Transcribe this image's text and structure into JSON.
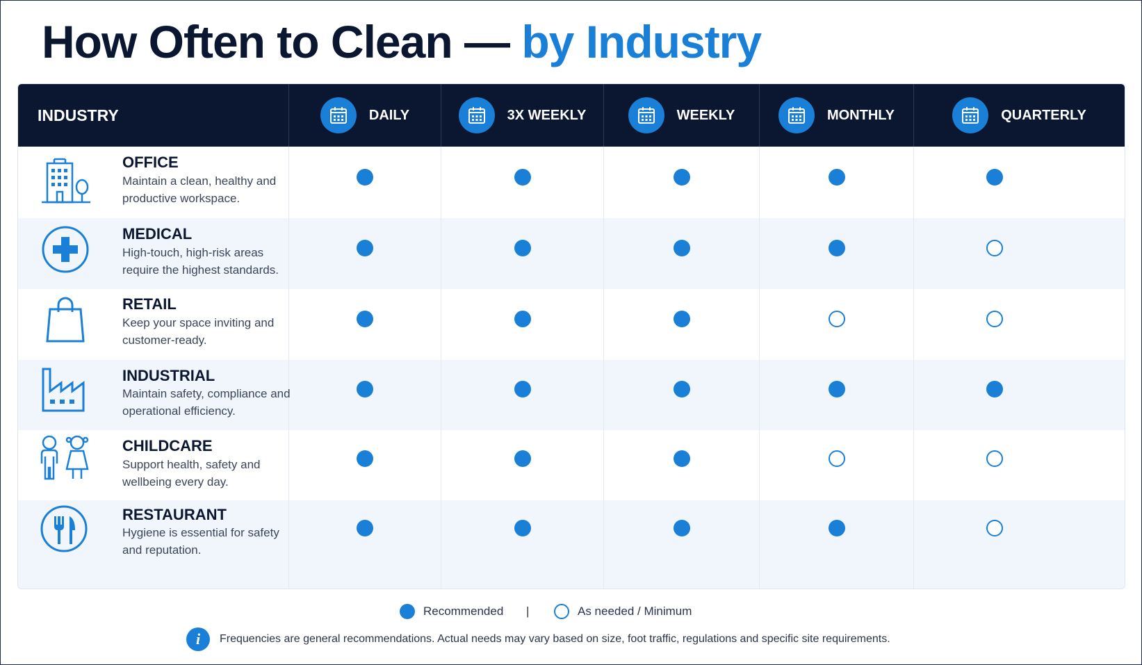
{
  "title": {
    "main": "How Often to Clean —",
    "accent": "by Industry"
  },
  "colors": {
    "navy": "#0b1631",
    "accent": "#1a7fd6",
    "row_alt": "#f0f6fc"
  },
  "header": {
    "industry_label": "INDUSTRY",
    "columns": [
      {
        "label": "DAILY",
        "icon": "calendar-icon"
      },
      {
        "label": "3X WEEKLY",
        "icon": "calendar-icon"
      },
      {
        "label": "WEEKLY",
        "icon": "calendar-icon"
      },
      {
        "label": "MONTHLY",
        "icon": "calendar-icon"
      },
      {
        "label": "QUARTERLY",
        "icon": "calendar-icon"
      }
    ]
  },
  "rows": [
    {
      "name": "OFFICE",
      "desc": "Maintain a clean, healthy and productive workspace.",
      "icon": "office-building-icon",
      "marks": [
        "recommended",
        "recommended",
        "recommended",
        "recommended",
        "recommended"
      ]
    },
    {
      "name": "MEDICAL",
      "desc": "High-touch, high-risk areas require the highest standards.",
      "icon": "medical-cross-icon",
      "marks": [
        "recommended",
        "recommended",
        "recommended",
        "recommended",
        "as-needed"
      ]
    },
    {
      "name": "RETAIL",
      "desc": "Keep your space inviting and customer-ready.",
      "icon": "shopping-bag-icon",
      "marks": [
        "recommended",
        "recommended",
        "recommended",
        "as-needed",
        "as-needed"
      ]
    },
    {
      "name": "INDUSTRIAL",
      "desc": "Maintain safety, compliance and operational efficiency.",
      "icon": "factory-icon",
      "marks": [
        "recommended",
        "recommended",
        "recommended",
        "recommended",
        "recommended"
      ]
    },
    {
      "name": "CHILDCARE",
      "desc": "Support health, safety and wellbeing every day.",
      "icon": "children-icon",
      "marks": [
        "recommended",
        "recommended",
        "recommended",
        "as-needed",
        "as-needed"
      ]
    },
    {
      "name": "RESTAURANT",
      "desc": "Hygiene is essential for safety and reputation.",
      "icon": "fork-knife-icon",
      "marks": [
        "recommended",
        "recommended",
        "recommended",
        "recommended",
        "as-needed"
      ]
    }
  ],
  "legend": {
    "recommended": "Recommended",
    "separator": "|",
    "as_needed": "As needed / Minimum"
  },
  "note": {
    "icon": "info-icon",
    "glyph": "i",
    "text": "Frequencies are general recommendations. Actual needs may vary based on size, foot traffic, regulations and specific site requirements."
  }
}
